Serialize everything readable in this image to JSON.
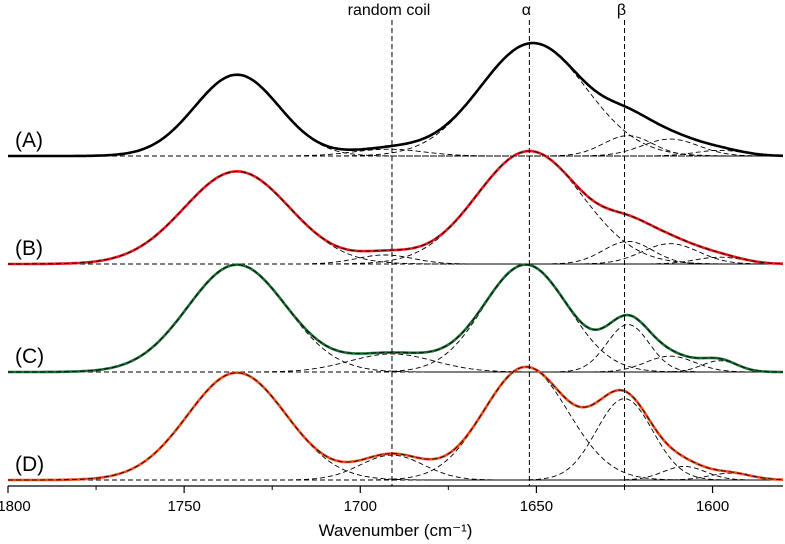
{
  "chart_data": {
    "type": "line",
    "xlabel": "Wavenumber (cm⁻¹)",
    "xlim": [
      1800,
      1580
    ],
    "x_reversed": true,
    "xticks": [
      1800,
      1750,
      1700,
      1650,
      1600
    ],
    "ylabel": "",
    "grid": false,
    "annotations": [
      {
        "label": "random coil",
        "x": 1691
      },
      {
        "label": "α",
        "x": 1652
      },
      {
        "label": "β",
        "x": 1625
      }
    ],
    "series": [
      {
        "name": "(A)",
        "color": "#000000",
        "offset": 3,
        "scale": 0.85,
        "components": [
          {
            "center": 1735,
            "amp": 0.72,
            "width": 12
          },
          {
            "center": 1692,
            "amp": 0.06,
            "width": 10
          },
          {
            "center": 1651,
            "amp": 1.0,
            "width": 15
          },
          {
            "center": 1624,
            "amp": 0.18,
            "width": 7
          },
          {
            "center": 1612,
            "amp": 0.15,
            "width": 8
          },
          {
            "center": 1598,
            "amp": 0.05,
            "width": 7
          }
        ]
      },
      {
        "name": "(B)",
        "color": "#e41a1c",
        "offset": 2,
        "scale": 0.85,
        "components": [
          {
            "center": 1735,
            "amp": 0.82,
            "width": 15
          },
          {
            "center": 1693,
            "amp": 0.08,
            "width": 8
          },
          {
            "center": 1652,
            "amp": 1.0,
            "width": 15
          },
          {
            "center": 1624,
            "amp": 0.2,
            "width": 7
          },
          {
            "center": 1612,
            "amp": 0.18,
            "width": 8
          },
          {
            "center": 1598,
            "amp": 0.06,
            "width": 7
          }
        ]
      },
      {
        "name": "(C)",
        "color": "#1b6b35",
        "offset": 1,
        "scale": 0.85,
        "components": [
          {
            "center": 1735,
            "amp": 0.95,
            "width": 14
          },
          {
            "center": 1691,
            "amp": 0.16,
            "width": 12
          },
          {
            "center": 1653,
            "amp": 0.95,
            "width": 12
          },
          {
            "center": 1624,
            "amp": 0.42,
            "width": 6
          },
          {
            "center": 1612,
            "amp": 0.14,
            "width": 7
          },
          {
            "center": 1598,
            "amp": 0.1,
            "width": 5
          }
        ]
      },
      {
        "name": "(D)",
        "color": "#f04a1c",
        "offset": 0,
        "scale": 0.85,
        "components": [
          {
            "center": 1735,
            "amp": 0.95,
            "width": 14
          },
          {
            "center": 1691,
            "amp": 0.22,
            "width": 9
          },
          {
            "center": 1653,
            "amp": 1.0,
            "width": 12
          },
          {
            "center": 1625,
            "amp": 0.72,
            "width": 8
          },
          {
            "center": 1608,
            "amp": 0.12,
            "width": 6
          },
          {
            "center": 1595,
            "amp": 0.06,
            "width": 6
          }
        ]
      }
    ]
  }
}
